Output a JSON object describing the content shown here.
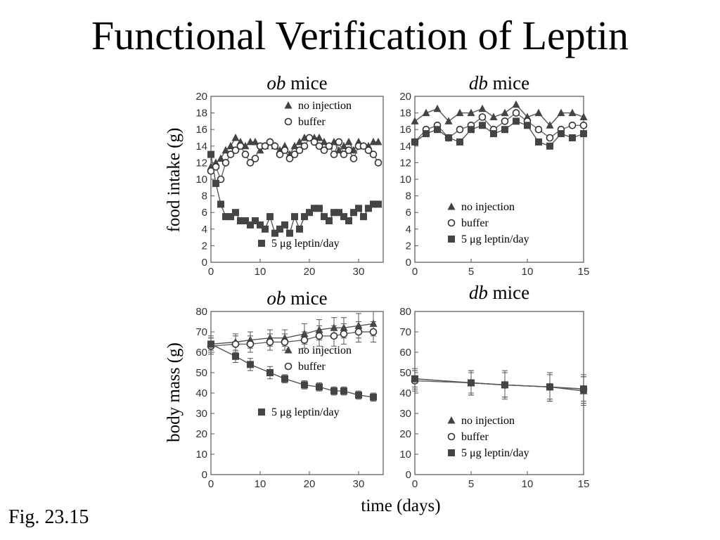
{
  "title": "Functional Verification of Leptin",
  "caption": "Fig. 23.15",
  "shared_labels": {
    "ylabel_top": "food intake (g)",
    "ylabel_bottom": "body mass (g)",
    "xlabel": "time (days)"
  },
  "chart_data": [
    {
      "type": "line",
      "title": "ob mice",
      "ylabel": "food intake (g)",
      "xlim": [
        0,
        35
      ],
      "ylim": [
        0,
        20
      ],
      "xticks": [
        0,
        10,
        20,
        30
      ],
      "yticks": [
        0,
        2,
        4,
        6,
        8,
        10,
        12,
        14,
        16,
        18,
        20
      ],
      "legend": [
        {
          "marker": "triangle",
          "label": "no injection"
        },
        {
          "marker": "circle",
          "label": "buffer"
        },
        {
          "marker": "square",
          "label": "5 μg leptin/day"
        }
      ],
      "series": [
        {
          "name": "no injection",
          "marker": "triangle",
          "x": [
            0,
            1,
            2,
            3,
            4,
            5,
            6,
            7,
            8,
            9,
            10,
            11,
            12,
            13,
            14,
            15,
            16,
            17,
            18,
            19,
            20,
            21,
            22,
            23,
            24,
            25,
            26,
            27,
            28,
            29,
            30,
            31,
            32,
            33,
            34
          ],
          "y": [
            11.5,
            12.0,
            12.5,
            13.5,
            14.0,
            15.0,
            14.5,
            14.0,
            14.5,
            14.5,
            13.5,
            14.0,
            14.5,
            14.0,
            13.5,
            14.0,
            13.0,
            14.0,
            14.5,
            15.0,
            15.0,
            15.0,
            15.0,
            14.5,
            14.0,
            14.5,
            13.5,
            14.0,
            14.5,
            13.5,
            14.5,
            14.0,
            14.0,
            14.5,
            14.5
          ]
        },
        {
          "name": "buffer",
          "marker": "circle",
          "x": [
            0,
            1,
            2,
            3,
            4,
            5,
            6,
            7,
            8,
            9,
            10,
            11,
            12,
            13,
            14,
            15,
            16,
            17,
            18,
            19,
            20,
            21,
            22,
            23,
            24,
            25,
            26,
            27,
            28,
            29,
            30,
            31,
            32,
            33,
            34
          ],
          "y": [
            11.0,
            11.5,
            10.0,
            12.0,
            13.0,
            13.5,
            14.0,
            13.0,
            12.0,
            12.5,
            14.0,
            14.0,
            14.5,
            14.0,
            13.0,
            13.5,
            12.5,
            13.0,
            13.5,
            14.0,
            15.0,
            14.5,
            14.0,
            13.5,
            14.0,
            13.0,
            14.5,
            13.0,
            13.5,
            12.5,
            14.0,
            14.0,
            13.5,
            13.0,
            12.0
          ]
        },
        {
          "name": "5 μg leptin/day",
          "marker": "square",
          "x": [
            0,
            1,
            2,
            3,
            4,
            5,
            6,
            7,
            8,
            9,
            10,
            11,
            12,
            13,
            14,
            15,
            16,
            17,
            18,
            19,
            20,
            21,
            22,
            23,
            24,
            25,
            26,
            27,
            28,
            29,
            30,
            31,
            32,
            33,
            34
          ],
          "y": [
            13.0,
            9.5,
            7.0,
            5.5,
            5.5,
            6.0,
            5.0,
            5.0,
            4.5,
            5.0,
            4.5,
            4.0,
            5.5,
            3.5,
            4.0,
            4.5,
            3.5,
            5.5,
            4.0,
            5.5,
            6.0,
            6.5,
            6.5,
            5.5,
            5.0,
            6.0,
            6.0,
            5.5,
            5.0,
            6.0,
            6.5,
            5.5,
            6.5,
            7.0,
            7.0
          ]
        }
      ]
    },
    {
      "type": "line",
      "title": "db mice",
      "ylabel": "",
      "xlim": [
        0,
        15
      ],
      "ylim": [
        0,
        20
      ],
      "xticks": [
        0,
        5,
        10,
        15
      ],
      "yticks": [
        0,
        2,
        4,
        6,
        8,
        10,
        12,
        14,
        16,
        18,
        20
      ],
      "legend": [
        {
          "marker": "triangle",
          "label": "no injection"
        },
        {
          "marker": "circle",
          "label": "buffer"
        },
        {
          "marker": "square",
          "label": "5 μg leptin/day"
        }
      ],
      "series": [
        {
          "name": "no injection",
          "marker": "triangle",
          "x": [
            0,
            1,
            2,
            3,
            4,
            5,
            6,
            7,
            8,
            9,
            10,
            11,
            12,
            13,
            14,
            15
          ],
          "y": [
            17.0,
            18.0,
            18.5,
            17.0,
            18.0,
            18.0,
            18.5,
            17.5,
            18.0,
            19.0,
            17.5,
            18.0,
            16.5,
            18.0,
            18.0,
            17.5
          ]
        },
        {
          "name": "buffer",
          "marker": "circle",
          "x": [
            0,
            1,
            2,
            3,
            4,
            5,
            6,
            7,
            8,
            9,
            10,
            11,
            12,
            13,
            14,
            15
          ],
          "y": [
            14.5,
            16.0,
            16.5,
            15.0,
            16.0,
            16.5,
            17.5,
            16.0,
            17.0,
            18.0,
            17.0,
            16.0,
            15.0,
            16.0,
            16.5,
            16.5
          ]
        },
        {
          "name": "5 μg leptin/day",
          "marker": "square",
          "x": [
            0,
            1,
            2,
            3,
            4,
            5,
            6,
            7,
            8,
            9,
            10,
            11,
            12,
            13,
            14,
            15
          ],
          "y": [
            14.5,
            15.5,
            16.0,
            15.0,
            14.5,
            16.0,
            16.5,
            15.5,
            16.0,
            17.0,
            16.5,
            14.5,
            14.0,
            15.5,
            15.0,
            15.5
          ]
        }
      ]
    },
    {
      "type": "line",
      "title": "ob mice",
      "ylabel": "body mass (g)",
      "xlim": [
        0,
        35
      ],
      "ylim": [
        0,
        80
      ],
      "xticks": [
        0,
        10,
        20,
        30
      ],
      "yticks": [
        0,
        10,
        20,
        30,
        40,
        50,
        60,
        70,
        80
      ],
      "legend": [
        {
          "marker": "triangle",
          "label": "no injection"
        },
        {
          "marker": "circle",
          "label": "buffer"
        },
        {
          "marker": "square",
          "label": "5 μg leptin/day"
        }
      ],
      "series": [
        {
          "name": "no injection",
          "marker": "triangle",
          "x": [
            0,
            5,
            8,
            12,
            15,
            19,
            22,
            25,
            27,
            30,
            33
          ],
          "y": [
            64,
            65,
            66,
            67,
            67,
            69,
            71,
            72,
            72,
            73,
            74
          ],
          "err": [
            4,
            4,
            4,
            4,
            4,
            5,
            5,
            5,
            5,
            6,
            6
          ]
        },
        {
          "name": "buffer",
          "marker": "circle",
          "x": [
            0,
            5,
            8,
            12,
            15,
            19,
            22,
            25,
            27,
            30,
            33
          ],
          "y": [
            63,
            64,
            64,
            65,
            65,
            66,
            68,
            68,
            69,
            70,
            70
          ],
          "err": [
            4,
            4,
            4,
            4,
            4,
            4,
            5,
            5,
            5,
            5,
            5
          ]
        },
        {
          "name": "5 μg leptin/day",
          "marker": "square",
          "x": [
            0,
            5,
            8,
            12,
            15,
            19,
            22,
            25,
            27,
            30,
            33
          ],
          "y": [
            64,
            58,
            54,
            50,
            47,
            44,
            43,
            41,
            41,
            39,
            38
          ],
          "err": [
            3,
            3,
            3,
            3,
            2,
            2,
            2,
            2,
            2,
            2,
            2
          ]
        }
      ]
    },
    {
      "type": "line",
      "title": "db mice",
      "ylabel": "",
      "xlim": [
        0,
        15
      ],
      "ylim": [
        0,
        80
      ],
      "xticks": [
        0,
        5,
        10,
        15
      ],
      "yticks": [
        0,
        10,
        20,
        30,
        40,
        50,
        60,
        70,
        80
      ],
      "legend": [
        {
          "marker": "triangle",
          "label": "no injection"
        },
        {
          "marker": "circle",
          "label": "buffer"
        },
        {
          "marker": "square",
          "label": "5 μg leptin/day"
        }
      ],
      "series": [
        {
          "name": "no injection",
          "marker": "triangle",
          "x": [
            0,
            5,
            8,
            12,
            15
          ],
          "y": [
            47,
            45,
            44,
            43,
            41
          ],
          "err": [
            5,
            6,
            7,
            7,
            7
          ]
        },
        {
          "name": "buffer",
          "marker": "circle",
          "x": [
            0,
            5,
            8,
            12,
            15
          ],
          "y": [
            46,
            45,
            44,
            43,
            42
          ],
          "err": [
            5,
            6,
            6,
            7,
            7
          ]
        },
        {
          "name": "5 μg leptin/day",
          "marker": "square",
          "x": [
            0,
            5,
            8,
            12,
            15
          ],
          "y": [
            47,
            45,
            44,
            43,
            42
          ],
          "err": [
            4,
            5,
            6,
            6,
            6
          ]
        }
      ]
    }
  ]
}
